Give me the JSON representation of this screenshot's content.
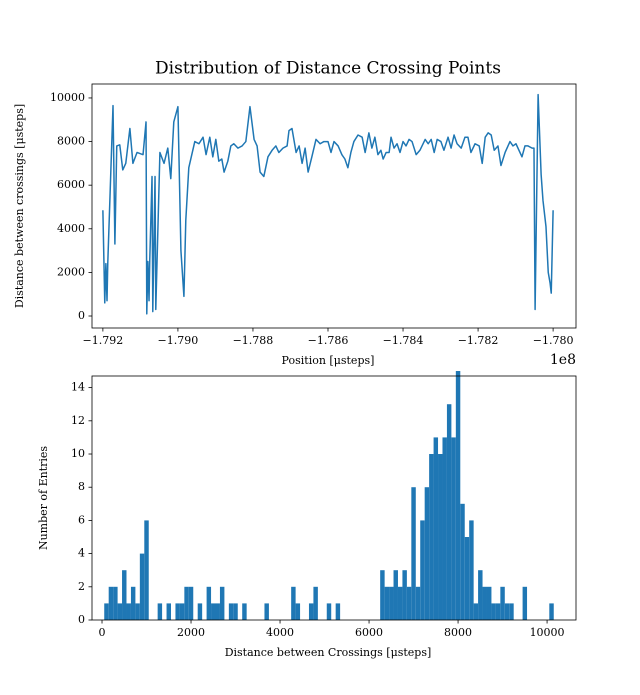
{
  "chart_data": [
    {
      "type": "line",
      "title": "Distribution of Distance Crossing Points",
      "x_label": "Position [μsteps]",
      "y_label": "Distance between crossings [μsteps]",
      "x_offset": "1e8",
      "color": "#1f77b4",
      "x": [
        -1.792,
        -1.79195,
        -1.79192,
        -1.79189,
        -1.79187,
        -1.79181,
        -1.79173,
        -1.79168,
        -1.79163,
        -1.79155,
        -1.79147,
        -1.79139,
        -1.79128,
        -1.7912,
        -1.79109,
        -1.79093,
        -1.79085,
        -1.79083,
        -1.7908,
        -1.79077,
        -1.79075,
        -1.79069,
        -1.79067,
        -1.79061,
        -1.79059,
        -1.79048,
        -1.79037,
        -1.79027,
        -1.79019,
        -1.79011,
        -1.79,
        -1.78992,
        -1.78984,
        -1.78979,
        -1.78971,
        -1.78955,
        -1.78944,
        -1.78933,
        -1.78925,
        -1.78915,
        -1.78907,
        -1.78899,
        -1.78891,
        -1.78883,
        -1.78877,
        -1.78867,
        -1.78859,
        -1.78851,
        -1.7884,
        -1.78829,
        -1.78819,
        -1.78808,
        -1.78797,
        -1.78789,
        -1.78781,
        -1.78771,
        -1.7876,
        -1.78749,
        -1.78739,
        -1.78731,
        -1.7872,
        -1.78709,
        -1.78704,
        -1.78696,
        -1.78685,
        -1.78677,
        -1.78669,
        -1.78661,
        -1.78653,
        -1.78643,
        -1.78632,
        -1.78621,
        -1.78611,
        -1.786,
        -1.78592,
        -1.78584,
        -1.78573,
        -1.78563,
        -1.78555,
        -1.78547,
        -1.78539,
        -1.78531,
        -1.7852,
        -1.78509,
        -1.78501,
        -1.78491,
        -1.78483,
        -1.78475,
        -1.78467,
        -1.78459,
        -1.78453,
        -1.78445,
        -1.78437,
        -1.78432,
        -1.78424,
        -1.78416,
        -1.78408,
        -1.784,
        -1.78392,
        -1.78384,
        -1.78376,
        -1.78365,
        -1.78355,
        -1.78341,
        -1.78333,
        -1.78325,
        -1.78317,
        -1.78309,
        -1.78299,
        -1.78291,
        -1.7828,
        -1.78272,
        -1.78264,
        -1.78256,
        -1.78245,
        -1.78235,
        -1.78227,
        -1.78219,
        -1.78208,
        -1.78197,
        -1.78189,
        -1.78181,
        -1.78173,
        -1.78165,
        -1.78157,
        -1.78147,
        -1.78139,
        -1.78128,
        -1.78115,
        -1.78107,
        -1.78099,
        -1.78091,
        -1.78083,
        -1.78075,
        -1.78067,
        -1.78056,
        -1.78051,
        -1.78048,
        -1.7804,
        -1.78032,
        -1.78027,
        -1.78019,
        -1.78013,
        -1.78008,
        -1.78005,
        -1.78
      ],
      "values": [
        4850,
        600,
        2400,
        700,
        2400,
        5500,
        9650,
        3300,
        7800,
        7850,
        6700,
        7000,
        8600,
        7000,
        7500,
        7400,
        8900,
        100,
        2500,
        700,
        2600,
        6400,
        200,
        6400,
        300,
        7500,
        7000,
        7700,
        6300,
        8900,
        9600,
        3000,
        900,
        4400,
        6800,
        8000,
        7900,
        8200,
        7400,
        8200,
        7300,
        8100,
        7100,
        7200,
        6600,
        7100,
        7800,
        7900,
        7700,
        7800,
        8000,
        9600,
        8100,
        7800,
        6600,
        6400,
        7300,
        7600,
        7800,
        7500,
        7700,
        7800,
        8500,
        8600,
        7500,
        7800,
        7000,
        7700,
        6600,
        7300,
        8100,
        7900,
        8000,
        8000,
        7500,
        8000,
        7800,
        7400,
        7200,
        6800,
        7500,
        8000,
        8300,
        8200,
        7500,
        8400,
        7700,
        8200,
        7400,
        7600,
        7200,
        7500,
        7500,
        8200,
        7700,
        7900,
        7500,
        8000,
        7800,
        8100,
        8000,
        7400,
        7600,
        8100,
        7900,
        8100,
        7500,
        8100,
        8000,
        7600,
        8200,
        7700,
        8300,
        7900,
        7700,
        8200,
        8200,
        7500,
        7900,
        7800,
        7000,
        8200,
        8400,
        8300,
        7600,
        7800,
        6900,
        7500,
        8000,
        7800,
        7900,
        7600,
        7300,
        7800,
        7800,
        7700,
        7700,
        300,
        10150,
        6500,
        5300,
        4100,
        2000,
        1500,
        1050,
        4850
      ],
      "xlim": [
        -1.79229,
        -1.77939
      ],
      "ylim": [
        -550,
        10640
      ],
      "xticks": [
        {
          "value": -1.792,
          "label": "−1.792"
        },
        {
          "value": -1.79,
          "label": "−1.790"
        },
        {
          "value": -1.788,
          "label": "−1.788"
        },
        {
          "value": -1.786,
          "label": "−1.786"
        },
        {
          "value": -1.784,
          "label": "−1.784"
        },
        {
          "value": -1.782,
          "label": "−1.782"
        },
        {
          "value": -1.78,
          "label": "−1.780"
        }
      ],
      "yticks": [
        0,
        2000,
        4000,
        6000,
        8000,
        10000
      ]
    },
    {
      "type": "histogram",
      "x_label": "Distance between Crossings [μsteps]",
      "y_label": "Number of Entries",
      "color": "#1f77b4",
      "bins": [
        50,
        150,
        250,
        350,
        450,
        550,
        650,
        750,
        850,
        950,
        1050,
        1150,
        1250,
        1350,
        1450,
        1550,
        1650,
        1750,
        1850,
        1950,
        2050,
        2150,
        2250,
        2350,
        2450,
        2550,
        2650,
        2750,
        2850,
        2950,
        3050,
        3150,
        3250,
        3350,
        3450,
        3550,
        3650,
        3750,
        3850,
        3950,
        4050,
        4150,
        4250,
        4350,
        4450,
        4550,
        4650,
        4750,
        4850,
        4950,
        5050,
        5150,
        5250,
        5350,
        5450,
        5550,
        5650,
        5750,
        5850,
        5950,
        6050,
        6150,
        6250,
        6350,
        6450,
        6550,
        6650,
        6750,
        6850,
        6950,
        7050,
        7150,
        7250,
        7350,
        7450,
        7550,
        7650,
        7750,
        7850,
        7950,
        8050,
        8150,
        8250,
        8350,
        8450,
        8550,
        8650,
        8750,
        8850,
        8950,
        9050,
        9150,
        9250,
        9350,
        9450,
        9550,
        9650,
        9750,
        9850,
        9950,
        10050,
        10150
      ],
      "values": [
        1,
        2,
        2,
        1,
        3,
        1,
        2,
        1,
        4,
        6,
        0,
        0,
        1,
        0,
        1,
        0,
        1,
        1,
        2,
        2,
        0,
        1,
        0,
        2,
        1,
        1,
        2,
        0,
        1,
        1,
        0,
        1,
        0,
        0,
        0,
        0,
        1,
        0,
        0,
        0,
        0,
        0,
        2,
        1,
        0,
        0,
        1,
        2,
        0,
        0,
        1,
        0,
        1,
        0,
        0,
        0,
        0,
        0,
        0,
        0,
        0,
        0,
        3,
        2,
        2,
        3,
        2,
        3,
        2,
        8,
        2,
        6,
        8,
        10,
        11,
        10,
        11,
        13,
        11,
        15,
        7,
        5,
        6,
        1,
        3,
        2,
        2,
        1,
        1,
        2,
        1,
        1,
        0,
        0,
        2,
        0,
        0,
        0,
        0,
        0,
        1
      ],
      "xlim": [
        -225,
        10650
      ],
      "ylim": [
        0,
        14.7
      ],
      "xticks": [
        0,
        2000,
        4000,
        6000,
        8000,
        10000
      ],
      "yticks": [
        0,
        2,
        4,
        6,
        8,
        10,
        12,
        14
      ]
    }
  ]
}
